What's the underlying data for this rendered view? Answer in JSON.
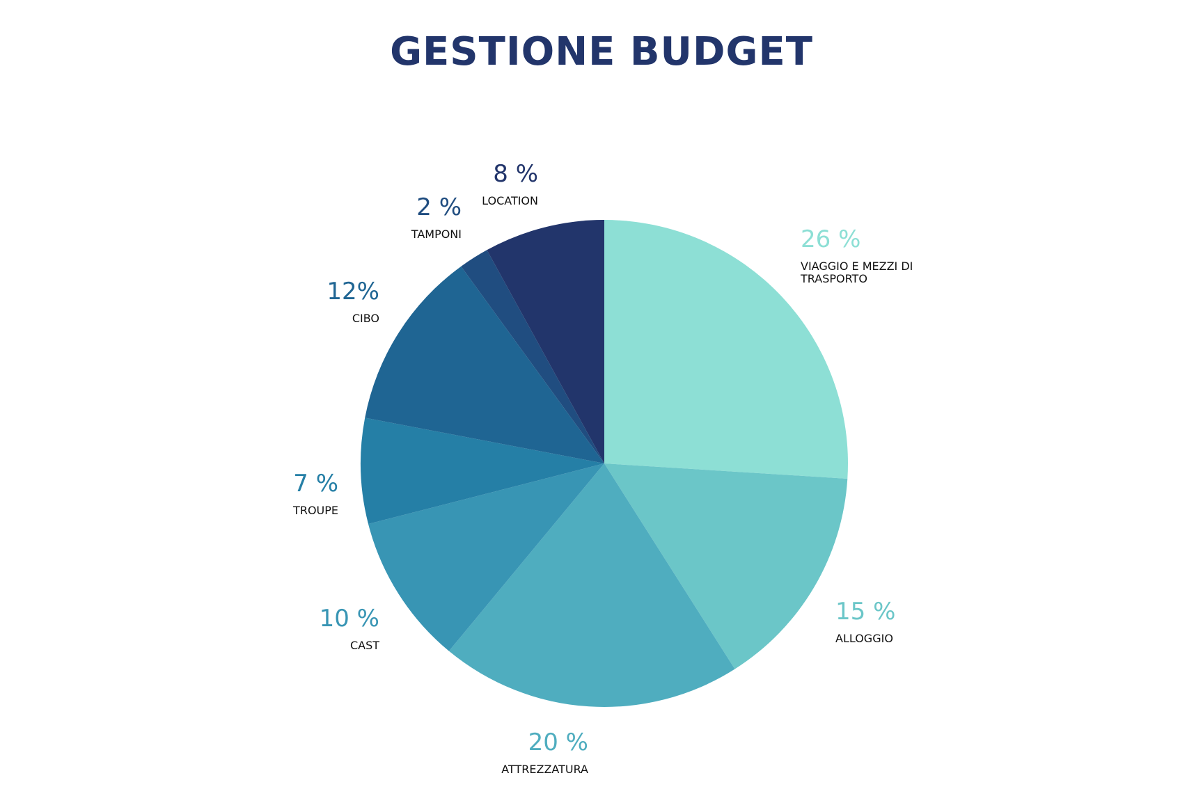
{
  "chart_data": {
    "type": "pie",
    "title": "GESTIONE BUDGET",
    "start_angle_deg": 0,
    "direction": "clockwise",
    "slices": [
      {
        "label_lines": [
          "VIAGGIO E MEZZI DI",
          "TRASPORTO"
        ],
        "value": 26,
        "value_text": "26 %",
        "color": "#8ddfd5",
        "label_color": "#8ddfd5"
      },
      {
        "label_lines": [
          "ALLOGGIO"
        ],
        "value": 15,
        "value_text": "15 %",
        "color": "#6bc6c8",
        "label_color": "#6bc6c8"
      },
      {
        "label_lines": [
          "ATTREZZATURA"
        ],
        "value": 20,
        "value_text": "20 %",
        "color": "#4fadbf",
        "label_color": "#4fadbf"
      },
      {
        "label_lines": [
          "CAST"
        ],
        "value": 10,
        "value_text": "10 %",
        "color": "#3895b4",
        "label_color": "#3895b4"
      },
      {
        "label_lines": [
          "TROUPE"
        ],
        "value": 7,
        "value_text": "7 %",
        "color": "#257fa6",
        "label_color": "#257fa6"
      },
      {
        "label_lines": [
          "CIBO"
        ],
        "value": 12,
        "value_text": "12%",
        "color": "#1f6593",
        "label_color": "#1f6593"
      },
      {
        "label_lines": [
          "TAMPONI"
        ],
        "value": 2,
        "value_text": "2 %",
        "color": "#204d80",
        "label_color": "#204d80"
      },
      {
        "label_lines": [
          "LOCATION"
        ],
        "value": 8,
        "value_text": "8 %",
        "color": "#22356b",
        "label_color": "#22356b"
      }
    ]
  }
}
